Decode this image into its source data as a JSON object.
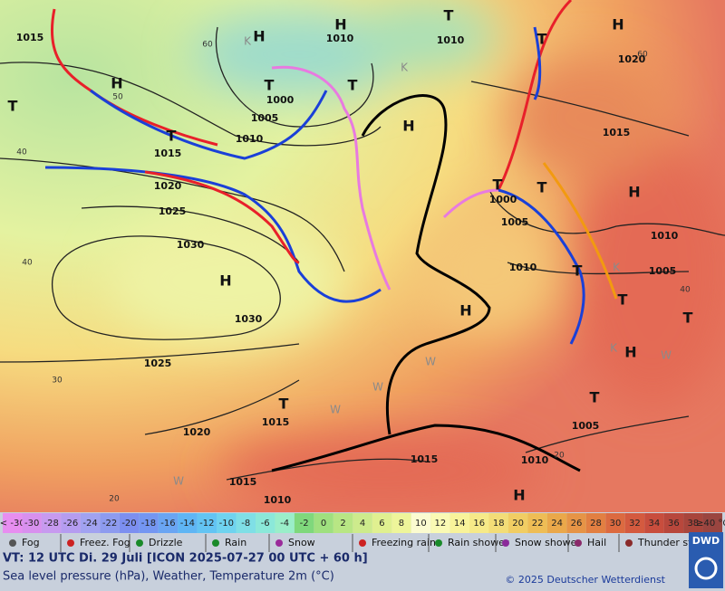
{
  "map": {
    "isobar_labels": [
      1015,
      1010,
      1010,
      1020,
      1000,
      1005,
      1010,
      1015,
      1015,
      1020,
      1025,
      1030,
      1000,
      1005,
      1010,
      1010,
      1005,
      1030,
      1025,
      1015,
      1020,
      1005,
      1010,
      1015,
      1015,
      1010
    ],
    "centers": [
      "H",
      "H",
      "H",
      "T",
      "T",
      "H",
      "T",
      "T",
      "T",
      "H",
      "T",
      "H",
      "H",
      "T",
      "T",
      "T",
      "H",
      "T",
      "H",
      "T",
      "H",
      "T",
      "T"
    ],
    "air_mass": [
      "K",
      "K",
      "K",
      "K",
      "W",
      "W",
      "W",
      "W",
      "W"
    ],
    "temperature_labels": [
      60,
      50,
      40,
      40,
      30,
      20,
      20,
      40,
      60
    ]
  },
  "legend": {
    "temperature_scale": [
      "< -30",
      -30,
      -28,
      -26,
      -24,
      -22,
      -20,
      -18,
      -16,
      -14,
      -12,
      -10,
      -8,
      -6,
      -4,
      -2,
      0,
      2,
      4,
      6,
      8,
      10,
      12,
      14,
      16,
      18,
      20,
      22,
      24,
      26,
      28,
      30,
      32,
      34,
      36,
      38,
      "≥40 °C"
    ],
    "scale_colors": [
      "#e78ef0",
      "#d890ee",
      "#c79aef",
      "#b59cf0",
      "#a1a2f1",
      "#8d9bef",
      "#7c8ff0",
      "#7496f2",
      "#6aa5f3",
      "#5fb5f4",
      "#63c4f3",
      "#6fd3ef",
      "#7fdfe6",
      "#8be8d9",
      "#9aeec9",
      "#7fd87c",
      "#9fe07f",
      "#b8e684",
      "#cdeb8c",
      "#e0f090",
      "#eef59a",
      "#fbfbd0",
      "#fafab4",
      "#f8f39a",
      "#f6ea88",
      "#f3dd77",
      "#f1cd63",
      "#eebd55",
      "#eaa84a",
      "#e69446",
      "#e27f42",
      "#dc6a40",
      "#d45a3f",
      "#c84d3d",
      "#b8473c",
      "#a8453c",
      "#9a4540"
    ],
    "weather": [
      "Fog",
      "Freez. Fog",
      "Drizzle",
      "Rain",
      "Snow",
      "Freezing rain",
      "Rain shower",
      "Snow shower",
      "Hail",
      "Thunder storm"
    ]
  },
  "footer": {
    "valid_time": "VT: 12 UTC Di.  29 Juli [ICON 2025-07-27  00 UTC + 60 h]",
    "subtitle": "Sea level pressure (hPa), Weather, Temperature 2m (°C)",
    "copyright": "© 2025 Deutscher Wetterdienst",
    "logo": "DWD"
  }
}
